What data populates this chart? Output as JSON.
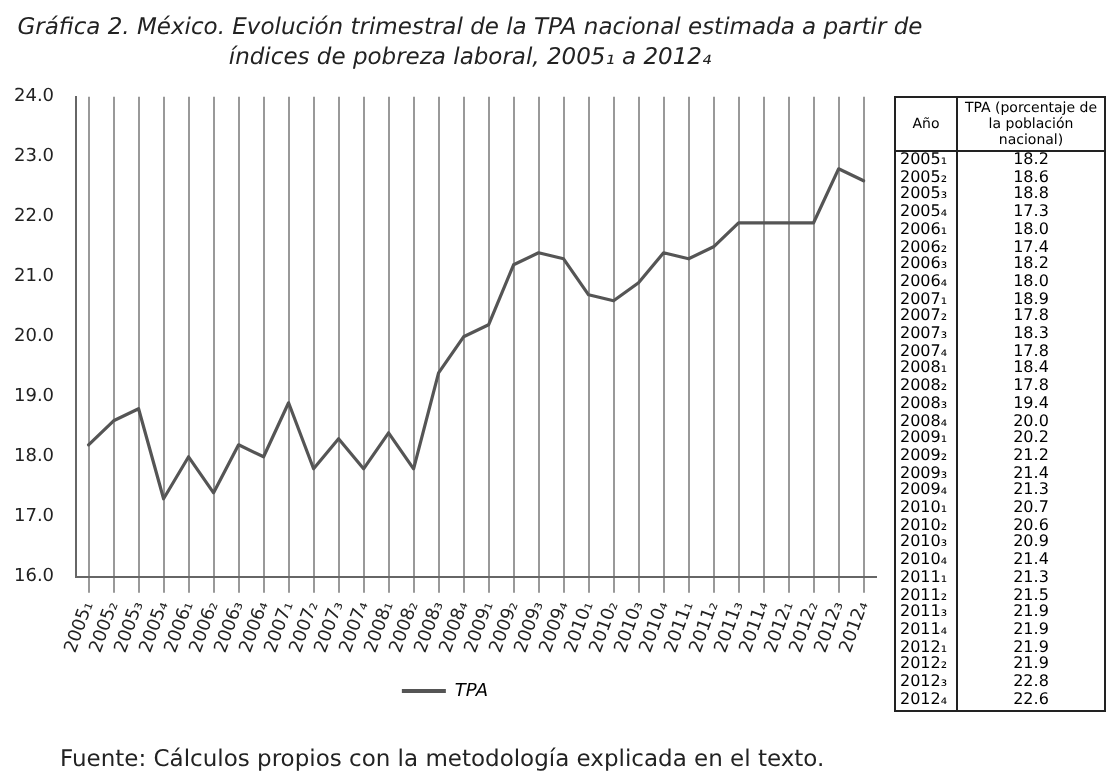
{
  "chart_data": {
    "type": "line",
    "title": "Gráfica 2. México. Evolución trimestral de la TPA nacional  estimada a partir de índices de pobreza laboral, 2005₁ a 2012₄",
    "categories": [
      "2005₁",
      "2005₂",
      "2005₃",
      "2005₄",
      "2006₁",
      "2006₂",
      "2006₃",
      "2006₄",
      "2007₁",
      "2007₂",
      "2007₃",
      "2007₄",
      "2008₁",
      "2008₂",
      "2008₃",
      "2008₄",
      "2009₁",
      "2009₂",
      "2009₃",
      "2009₄",
      "2010₁",
      "2010₂",
      "2010₃",
      "2010₄",
      "2011₁",
      "2011₂",
      "2011₃",
      "2011₄",
      "2012₁",
      "2012₂",
      "2012₃",
      "2012₄"
    ],
    "series": [
      {
        "name": "TPA",
        "color": "#555555",
        "values": [
          18.2,
          18.6,
          18.8,
          17.3,
          18.0,
          17.4,
          18.2,
          18.0,
          18.9,
          17.8,
          18.3,
          17.8,
          18.4,
          17.8,
          19.4,
          20.0,
          20.2,
          21.2,
          21.4,
          21.3,
          20.7,
          20.6,
          20.9,
          21.4,
          21.3,
          21.5,
          21.9,
          21.9,
          21.9,
          21.9,
          22.8,
          22.6
        ]
      }
    ],
    "ylim": [
      16,
      24
    ],
    "yticks": [
      {
        "value": 16,
        "label": "16.0"
      },
      {
        "value": 17,
        "label": "17.0"
      },
      {
        "value": 18,
        "label": "18.0"
      },
      {
        "value": 19,
        "label": "19.0"
      },
      {
        "value": 20,
        "label": "20.0"
      },
      {
        "value": 21,
        "label": "21.0"
      },
      {
        "value": 22,
        "label": "22.0"
      },
      {
        "value": 23,
        "label": "23.0"
      },
      {
        "value": 24,
        "label": "24.0"
      }
    ],
    "grid": "x",
    "legend": "bottom",
    "marker": "none",
    "line_style": "solid",
    "value_labels": [
      "18.2",
      "18.6",
      "18.8",
      "17.3",
      "18.0",
      "17.4",
      "18.2",
      "18.0",
      "18.9",
      "17.8",
      "18.3",
      "17.8",
      "18.4",
      "17.8",
      "19.4",
      "20.0",
      "20.2",
      "21.2",
      "21.4",
      "21.3",
      "20.7",
      "20.6",
      "20.9",
      "21.4",
      "21.3",
      "21.5",
      "21.9",
      "21.9",
      "21.9",
      "21.9",
      "22.8",
      "22.6"
    ],
    "annotations": [
      "Año",
      "TPA (porcentaje de la población nacional)",
      "Fuente: Cálculos propios con la metodología explicada en el texto."
    ]
  }
}
